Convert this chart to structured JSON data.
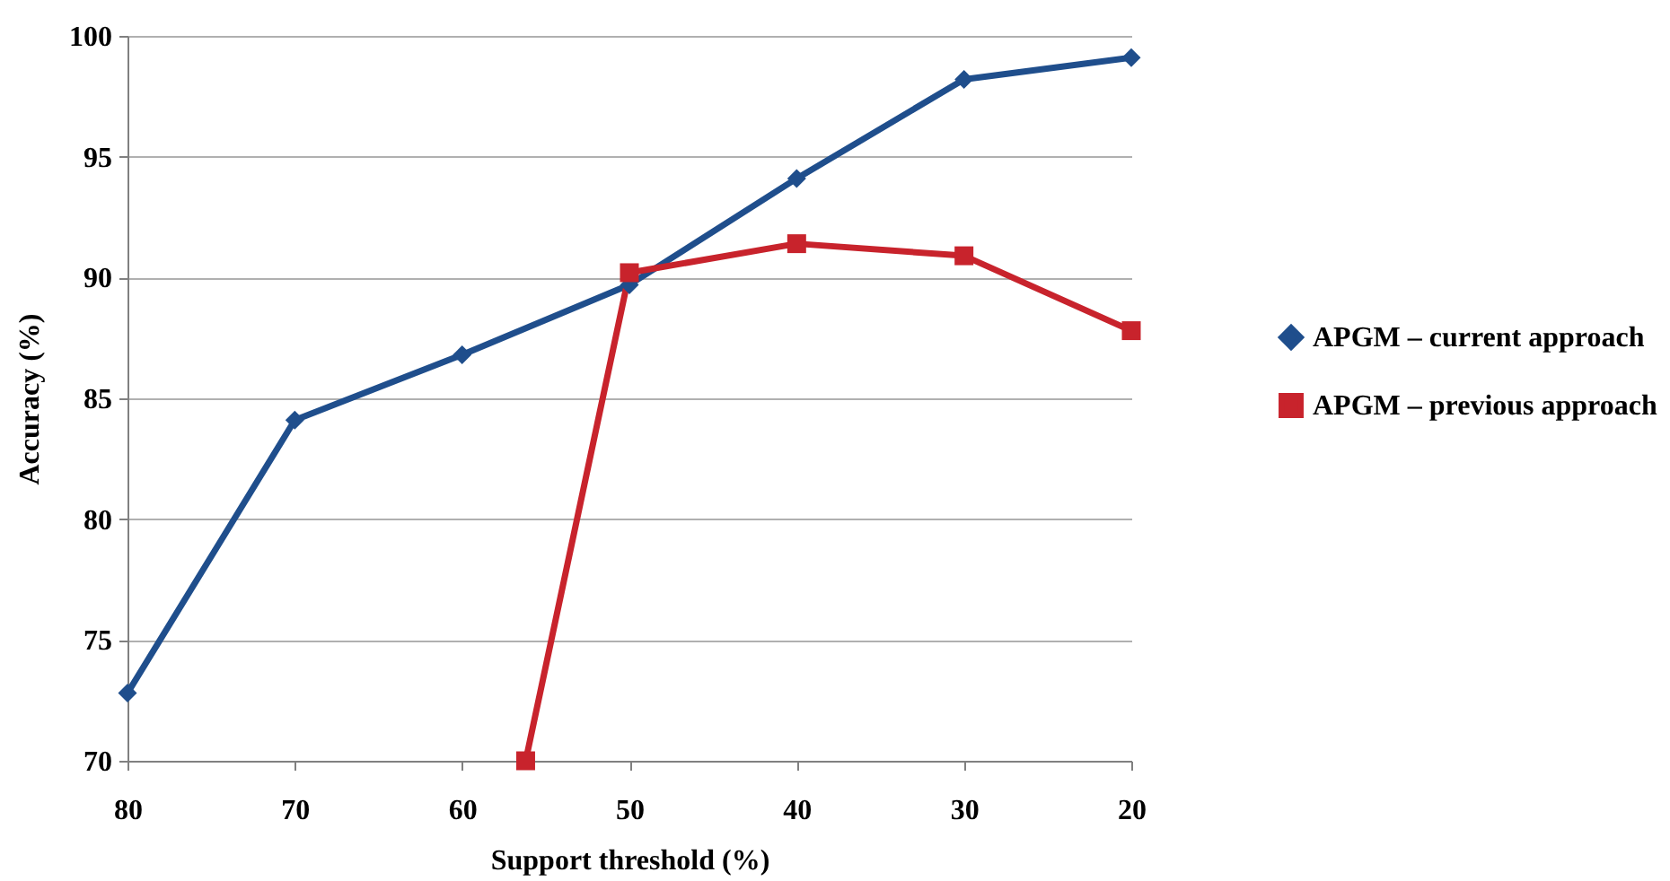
{
  "chart_data": {
    "type": "line",
    "xlabel": "Support threshold (%)",
    "ylabel": "Accuracy (%)",
    "x": [
      80,
      70,
      60,
      50,
      40,
      30,
      20
    ],
    "series": [
      {
        "name": "APGM – current approach",
        "color": "#1f4e8c",
        "marker": "diamond",
        "values": [
          72.8,
          84.1,
          86.8,
          89.7,
          94.1,
          98.2,
          99.1
        ]
      },
      {
        "name": "APGM – previous approach",
        "color": "#c8232c",
        "marker": "square",
        "x": [
          56.2,
          50,
          40,
          30,
          20
        ],
        "values": [
          70,
          90.2,
          91.4,
          90.9,
          87.8
        ]
      }
    ],
    "xlim": [
      80,
      20
    ],
    "xticks": [
      80,
      70,
      60,
      50,
      40,
      30,
      20
    ],
    "ylim": [
      70,
      100
    ],
    "yticks": [
      70,
      75,
      80,
      85,
      90,
      95,
      100
    ],
    "grid": "y",
    "legend": "right",
    "line_style": "solid"
  }
}
